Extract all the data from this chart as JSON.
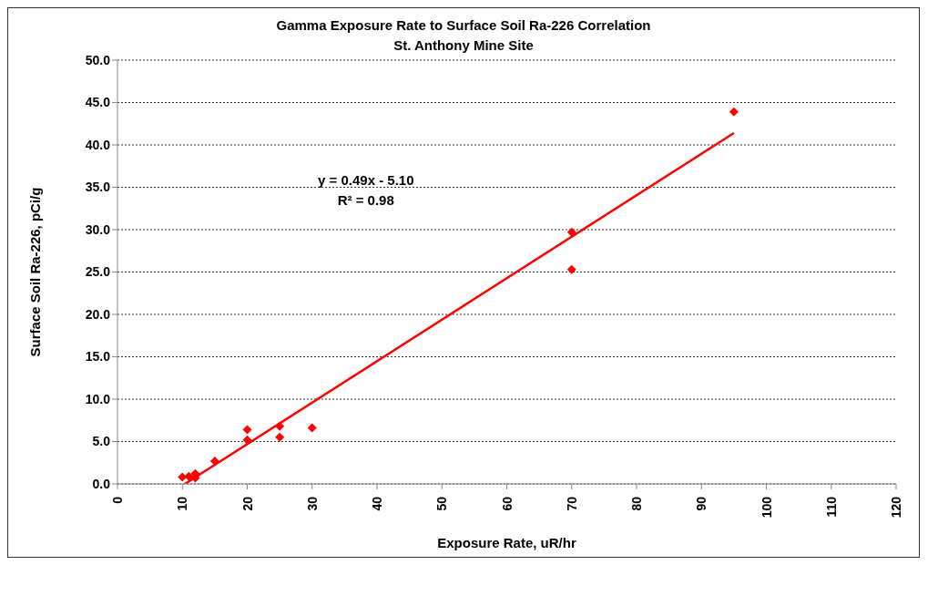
{
  "chart_data": {
    "type": "scatter",
    "title": "Gamma Exposure Rate to Surface Soil Ra-226 Correlation",
    "subtitle": "St. Anthony Mine Site",
    "xlabel": "Exposure Rate, uR/hr",
    "ylabel": "Surface Soil Ra-226, pCi/g",
    "series": [
      {
        "color": "#ff0000",
        "marker": "diamond",
        "x": [
          10,
          11,
          12,
          12,
          15,
          20,
          20,
          25,
          25,
          30,
          70,
          70,
          95
        ],
        "values": [
          0.8,
          0.9,
          1.2,
          0.7,
          2.7,
          6.4,
          5.2,
          6.8,
          5.5,
          6.6,
          29.7,
          25.3,
          43.9
        ]
      },
      {
        "type": "line",
        "color": "#ff0000",
        "marker": "none",
        "x": [
          10.4,
          95
        ],
        "values": [
          0,
          41.4
        ]
      }
    ],
    "xlim": [
      0,
      120
    ],
    "xticks": [
      0,
      10,
      20,
      30,
      40,
      50,
      60,
      70,
      80,
      90,
      100,
      110,
      120
    ],
    "ylim": [
      0,
      50
    ],
    "yticks": [
      {
        "value": 0,
        "label": "0.0"
      },
      {
        "value": 5,
        "label": "5.0"
      },
      {
        "value": 10,
        "label": "10.0"
      },
      {
        "value": 15,
        "label": "15.0"
      },
      {
        "value": 20,
        "label": "20.0"
      },
      {
        "value": 25,
        "label": "25.0"
      },
      {
        "value": 30,
        "label": "30.0"
      },
      {
        "value": 35,
        "label": "35.0"
      },
      {
        "value": 40,
        "label": "40.0"
      },
      {
        "value": 45,
        "label": "45.0"
      },
      {
        "value": 50,
        "label": "50.0"
      }
    ],
    "grid": "y",
    "legend": false,
    "annotations": [
      "y = 0.49x - 5.10",
      "R² = 0.98"
    ]
  }
}
